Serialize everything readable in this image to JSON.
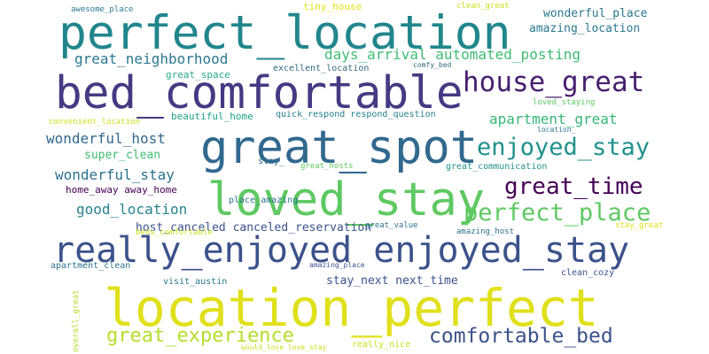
{
  "word_cloud": {
    "palette": [
      "#440154",
      "#3b528b",
      "#21918c",
      "#5ec962",
      "#fde725"
    ],
    "words": [
      {
        "text": "perfect_location",
        "color": "#21868c"
      },
      {
        "text": "bed_comfortable",
        "color": "#443a83"
      },
      {
        "text": "great_spot",
        "color": "#31688e"
      },
      {
        "text": "loved_stay",
        "color": "#5ec962"
      },
      {
        "text": "really_enjoyed enjoyed_stay",
        "color": "#3b528b"
      },
      {
        "text": "location_perfect",
        "color": "#e0e01c"
      },
      {
        "text": "house_great",
        "color": "#481f70"
      },
      {
        "text": "enjoyed_stay",
        "color": "#21918c"
      },
      {
        "text": "great_time",
        "color": "#440154"
      },
      {
        "text": "perfect_place",
        "color": "#5ec962"
      },
      {
        "text": "comfortable_bed",
        "color": "#3b528b"
      },
      {
        "text": "great_experience",
        "color": "#b5de2b"
      },
      {
        "text": "great_neighborhood",
        "color": "#2a788e"
      },
      {
        "text": "days_arrival automated_posting",
        "color": "#3fbc73"
      },
      {
        "text": "apartment_great",
        "color": "#35b779"
      },
      {
        "text": "wonderful_host",
        "color": "#31688e"
      },
      {
        "text": "wonderful_stay",
        "color": "#2c728e"
      },
      {
        "text": "good_location",
        "color": "#26828e"
      },
      {
        "text": "host_canceled canceled_reservation",
        "color": "#3b528b"
      },
      {
        "text": "wonderful_place",
        "color": "#2a788e"
      },
      {
        "text": "amazing_location",
        "color": "#2a788e"
      },
      {
        "text": "stay_next next_time",
        "color": "#3b528b"
      },
      {
        "text": "super_clean",
        "color": "#3fbc73"
      },
      {
        "text": "home_away away_home",
        "color": "#440154"
      },
      {
        "text": "great_space",
        "color": "#26a984"
      },
      {
        "text": "beautiful_home",
        "color": "#20a386"
      },
      {
        "text": "excellent_location",
        "color": "#30697f"
      },
      {
        "text": "quick_respond respond_question",
        "color": "#277f8e"
      },
      {
        "text": "place_amazing",
        "color": "#2c728e"
      },
      {
        "text": "visit_austin",
        "color": "#2a788e"
      },
      {
        "text": "clean_cozy",
        "color": "#3b528b"
      },
      {
        "text": "awesome_place",
        "color": "#2a788e"
      },
      {
        "text": "tiny_house",
        "color": "#dfe318"
      },
      {
        "text": "clean_great",
        "color": "#c8e020"
      },
      {
        "text": "comfy_bed",
        "color": "#30697f"
      },
      {
        "text": "loved_staying",
        "color": "#5ec962"
      },
      {
        "text": "location_",
        "color": "#2c728e"
      },
      {
        "text": "convenient_location",
        "color": "#c8e020"
      },
      {
        "text": "stay_",
        "color": "#31688e"
      },
      {
        "text": "great_hosts",
        "color": "#5ec962"
      },
      {
        "text": "great_communication",
        "color": "#21918c"
      },
      {
        "text": "great_value",
        "color": "#2c728e"
      },
      {
        "text": "stay_great",
        "color": "#dfe318"
      },
      {
        "text": "beds_comfortable",
        "color": "#c8e020"
      },
      {
        "text": "amazing_host",
        "color": "#2c728e"
      },
      {
        "text": "apartment_clean",
        "color": "#2c728e"
      },
      {
        "text": "amazing_place",
        "color": "#3b528b"
      },
      {
        "text": "overall_great",
        "color": "#b5de2b"
      },
      {
        "text": "would_love love_stay",
        "color": "#c8e020"
      },
      {
        "text": "really_nice",
        "color": "#c8e020"
      }
    ]
  }
}
